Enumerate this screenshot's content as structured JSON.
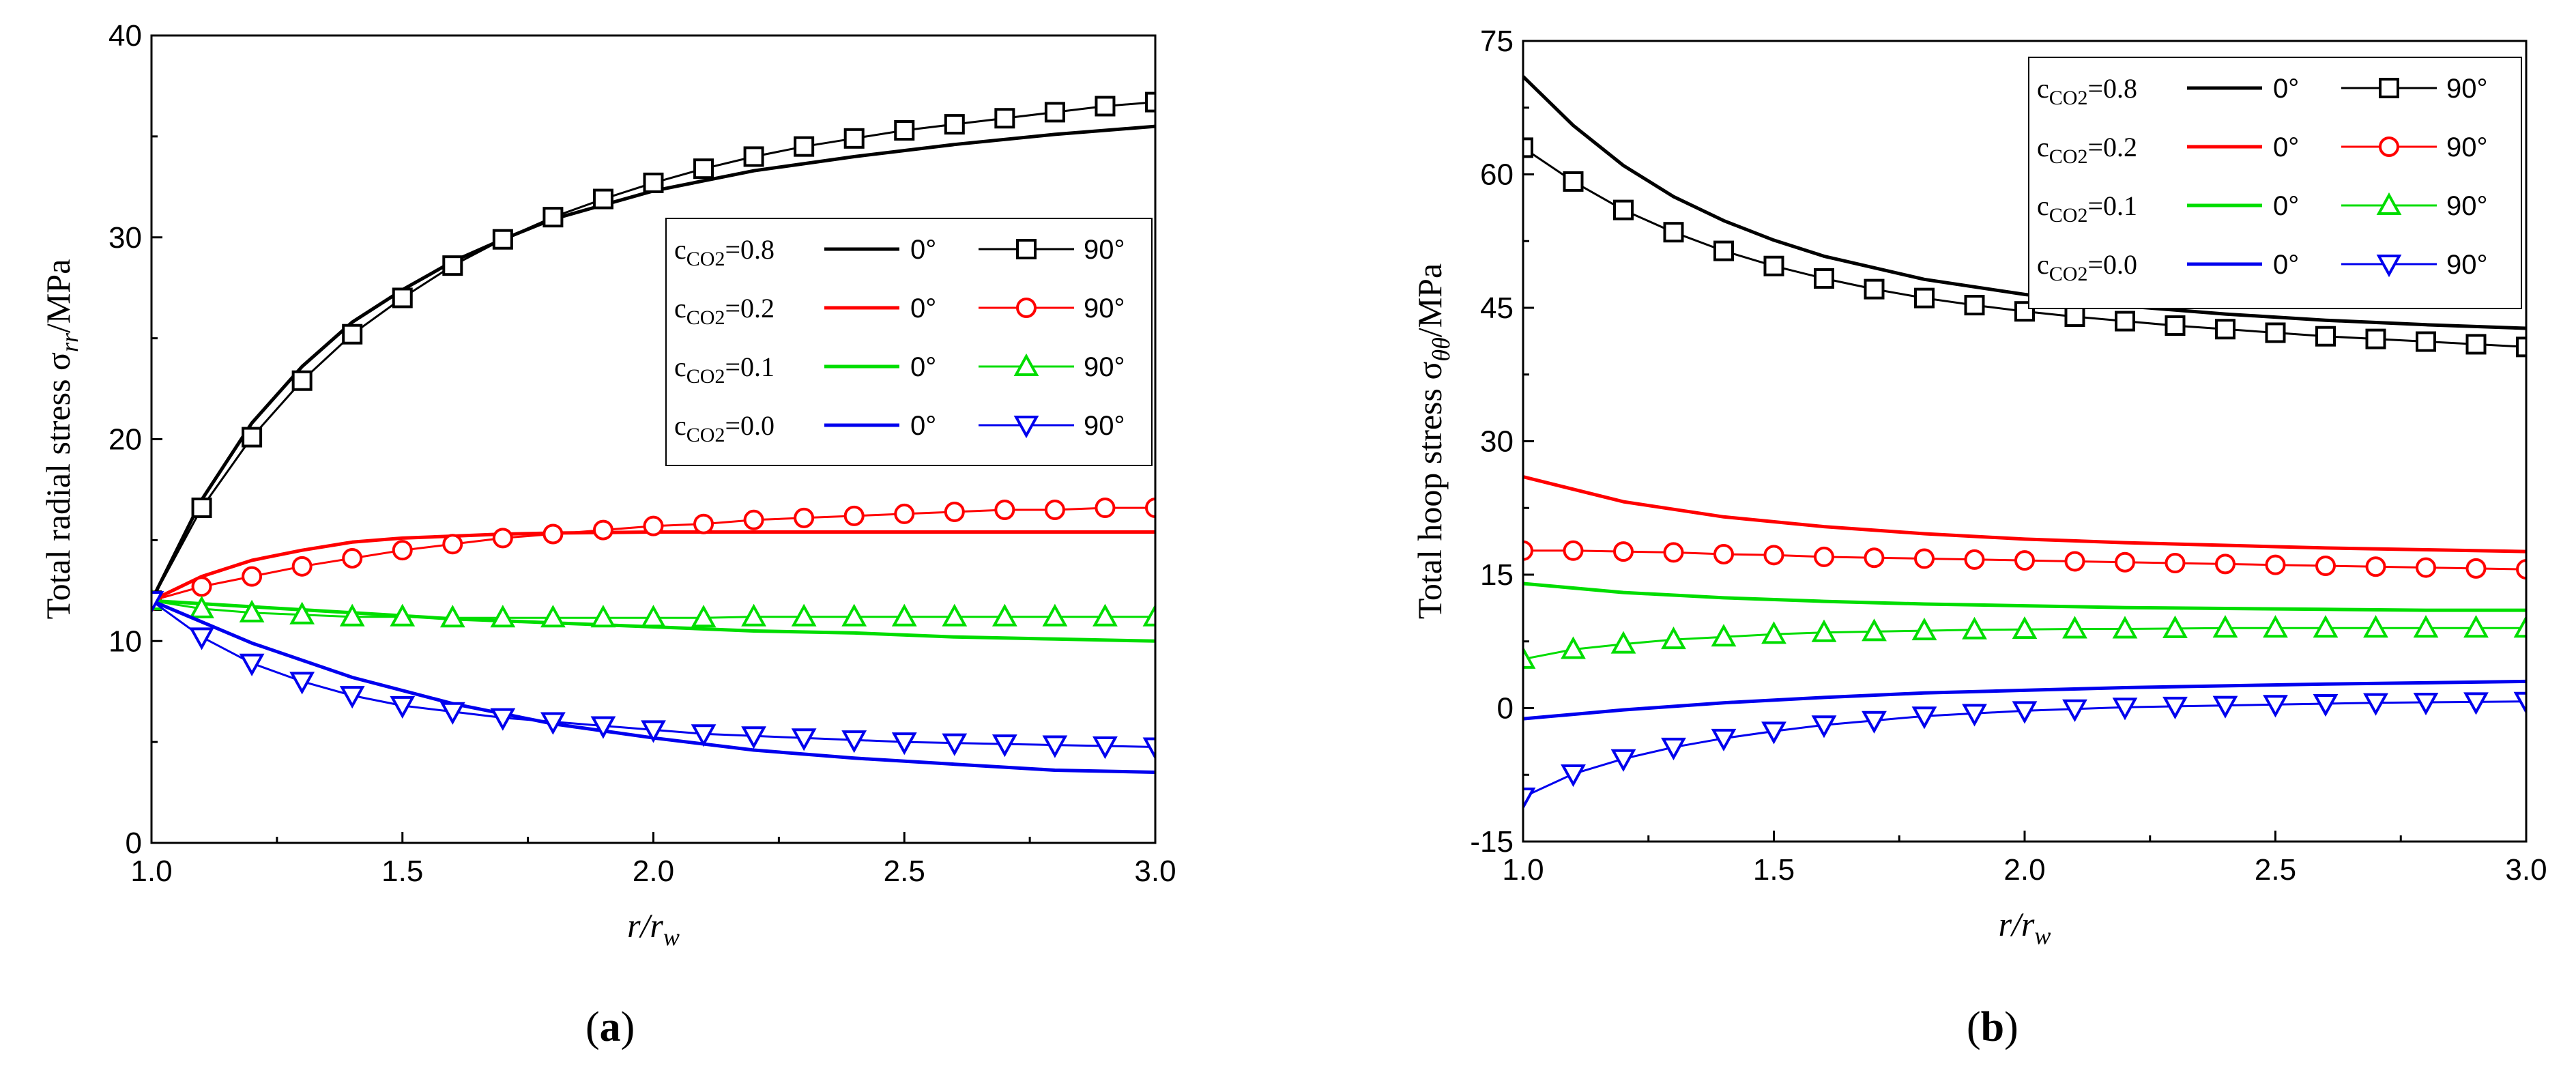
{
  "chart_data": [
    {
      "type": "line",
      "panel_label": "a",
      "xlabel": "r/r_w",
      "ylabel": "Total radial stress σ_rr/MPa",
      "xlim": [
        1.0,
        3.0
      ],
      "ylim": [
        0,
        40
      ],
      "xticks": [
        "1.0",
        "1.5",
        "2.0",
        "2.5",
        "3.0"
      ],
      "yticks": [
        "0",
        "10",
        "20",
        "30",
        "40"
      ],
      "legend_placement": "upper-right",
      "grid": false,
      "legend": [
        {
          "label": "c_CO2=0.8",
          "deg0": "0°",
          "deg90": "90°"
        },
        {
          "label": "c_CO2=0.2",
          "deg0": "0°",
          "deg90": "90°"
        },
        {
          "label": "c_CO2=0.1",
          "deg0": "0°",
          "deg90": "90°"
        },
        {
          "label": "c_CO2=0.0",
          "deg0": "0°",
          "deg90": "90°"
        }
      ],
      "series": [
        {
          "name": "c_CO2=0.8 0°",
          "color": "#000000",
          "marker": "none",
          "x": [
            1.0,
            1.1,
            1.2,
            1.3,
            1.4,
            1.5,
            1.6,
            1.7,
            1.8,
            1.9,
            2.0,
            2.2,
            2.4,
            2.6,
            2.8,
            3.0
          ],
          "y": [
            12.0,
            17.0,
            20.8,
            23.6,
            25.8,
            27.4,
            28.8,
            29.9,
            30.9,
            31.6,
            32.3,
            33.3,
            34.0,
            34.6,
            35.1,
            35.5
          ]
        },
        {
          "name": "c_CO2=0.8 90°",
          "color": "#000000",
          "marker": "square",
          "x": [
            1.0,
            1.1,
            1.2,
            1.3,
            1.4,
            1.5,
            1.6,
            1.7,
            1.8,
            1.9,
            2.0,
            2.1,
            2.2,
            2.3,
            2.4,
            2.5,
            2.6,
            2.7,
            2.8,
            2.9,
            3.0
          ],
          "y": [
            12.0,
            16.6,
            20.1,
            22.9,
            25.2,
            27.0,
            28.6,
            29.9,
            31.0,
            31.9,
            32.7,
            33.4,
            34.0,
            34.5,
            34.9,
            35.3,
            35.6,
            35.9,
            36.2,
            36.5,
            36.7
          ]
        },
        {
          "name": "c_CO2=0.2 0°",
          "color": "#ff0000",
          "marker": "none",
          "x": [
            1.0,
            1.1,
            1.2,
            1.3,
            1.4,
            1.5,
            1.6,
            1.7,
            1.8,
            2.0,
            2.2,
            2.4,
            2.6,
            2.8,
            3.0
          ],
          "y": [
            12.0,
            13.2,
            14.0,
            14.5,
            14.9,
            15.1,
            15.2,
            15.3,
            15.35,
            15.4,
            15.4,
            15.4,
            15.4,
            15.4,
            15.4
          ]
        },
        {
          "name": "c_CO2=0.2 90°",
          "color": "#ff0000",
          "marker": "circle",
          "x": [
            1.0,
            1.1,
            1.2,
            1.3,
            1.4,
            1.5,
            1.6,
            1.7,
            1.8,
            1.9,
            2.0,
            2.1,
            2.2,
            2.3,
            2.4,
            2.5,
            2.6,
            2.7,
            2.8,
            2.9,
            3.0
          ],
          "y": [
            12.0,
            12.7,
            13.2,
            13.7,
            14.1,
            14.5,
            14.8,
            15.1,
            15.3,
            15.5,
            15.7,
            15.8,
            16.0,
            16.1,
            16.2,
            16.3,
            16.4,
            16.5,
            16.5,
            16.6,
            16.6
          ]
        },
        {
          "name": "c_CO2=0.1 0°",
          "color": "#00dd00",
          "marker": "none",
          "x": [
            1.0,
            1.2,
            1.4,
            1.6,
            1.8,
            2.0,
            2.2,
            2.4,
            2.6,
            2.8,
            3.0
          ],
          "y": [
            12.0,
            11.7,
            11.4,
            11.1,
            10.9,
            10.7,
            10.5,
            10.4,
            10.2,
            10.1,
            10.0
          ]
        },
        {
          "name": "c_CO2=0.1 90°",
          "color": "#00dd00",
          "marker": "triangle-up",
          "x": [
            1.0,
            1.1,
            1.2,
            1.3,
            1.4,
            1.5,
            1.6,
            1.7,
            1.8,
            1.9,
            2.0,
            2.1,
            2.2,
            2.3,
            2.4,
            2.5,
            2.6,
            2.7,
            2.8,
            2.9,
            3.0
          ],
          "y": [
            12.0,
            11.6,
            11.4,
            11.3,
            11.2,
            11.2,
            11.15,
            11.15,
            11.15,
            11.15,
            11.15,
            11.15,
            11.2,
            11.2,
            11.2,
            11.2,
            11.2,
            11.2,
            11.2,
            11.2,
            11.2
          ]
        },
        {
          "name": "c_CO2=0.0 0°",
          "color": "#0000ee",
          "marker": "none",
          "x": [
            1.0,
            1.2,
            1.4,
            1.6,
            1.8,
            2.0,
            2.2,
            2.4,
            2.6,
            2.8,
            3.0
          ],
          "y": [
            12.0,
            9.9,
            8.2,
            6.9,
            5.9,
            5.2,
            4.6,
            4.2,
            3.9,
            3.6,
            3.5
          ]
        },
        {
          "name": "c_CO2=0.0 90°",
          "color": "#0000ee",
          "marker": "triangle-down",
          "x": [
            1.0,
            1.1,
            1.2,
            1.3,
            1.4,
            1.5,
            1.6,
            1.7,
            1.8,
            1.9,
            2.0,
            2.1,
            2.2,
            2.3,
            2.4,
            2.5,
            2.6,
            2.7,
            2.8,
            2.9,
            3.0
          ],
          "y": [
            12.0,
            10.2,
            8.9,
            8.0,
            7.3,
            6.8,
            6.5,
            6.2,
            6.0,
            5.8,
            5.6,
            5.4,
            5.3,
            5.2,
            5.1,
            5.0,
            4.95,
            4.9,
            4.85,
            4.8,
            4.75
          ]
        }
      ]
    },
    {
      "type": "line",
      "panel_label": "b",
      "xlabel": "r/r_w",
      "ylabel": "Total hoop stress σ_θθ/MPa",
      "xlim": [
        1.0,
        3.0
      ],
      "ylim": [
        -15,
        75
      ],
      "xticks": [
        "1.0",
        "1.5",
        "2.0",
        "2.5",
        "3.0"
      ],
      "yticks": [
        "-15",
        "0",
        "15",
        "30",
        "45",
        "60",
        "75"
      ],
      "legend_placement": "upper-right",
      "grid": false,
      "legend": [
        {
          "label": "c_CO2=0.8",
          "deg0": "0°",
          "deg90": "90°"
        },
        {
          "label": "c_CO2=0.2",
          "deg0": "0°",
          "deg90": "90°"
        },
        {
          "label": "c_CO2=0.1",
          "deg0": "0°",
          "deg90": "90°"
        },
        {
          "label": "c_CO2=0.0",
          "deg0": "0°",
          "deg90": "90°"
        }
      ],
      "series": [
        {
          "name": "c_CO2=0.8 0°",
          "color": "#000000",
          "marker": "none",
          "x": [
            1.0,
            1.1,
            1.2,
            1.3,
            1.4,
            1.5,
            1.6,
            1.8,
            2.0,
            2.2,
            2.4,
            2.6,
            2.8,
            3.0
          ],
          "y": [
            71.0,
            65.5,
            61.0,
            57.5,
            54.8,
            52.6,
            50.8,
            48.2,
            46.5,
            45.2,
            44.3,
            43.6,
            43.1,
            42.7
          ]
        },
        {
          "name": "c_CO2=0.8 90°",
          "color": "#000000",
          "marker": "square",
          "x": [
            1.0,
            1.1,
            1.2,
            1.3,
            1.4,
            1.5,
            1.6,
            1.7,
            1.8,
            1.9,
            2.0,
            2.1,
            2.2,
            2.3,
            2.4,
            2.5,
            2.6,
            2.7,
            2.8,
            2.9,
            3.0
          ],
          "y": [
            63.0,
            59.2,
            56.0,
            53.5,
            51.4,
            49.7,
            48.3,
            47.1,
            46.1,
            45.3,
            44.6,
            44.0,
            43.5,
            43.0,
            42.6,
            42.2,
            41.8,
            41.5,
            41.2,
            40.9,
            40.6
          ]
        },
        {
          "name": "c_CO2=0.2 0°",
          "color": "#ff0000",
          "marker": "none",
          "x": [
            1.0,
            1.2,
            1.4,
            1.6,
            1.8,
            2.0,
            2.2,
            2.4,
            2.6,
            2.8,
            3.0
          ],
          "y": [
            26.0,
            23.2,
            21.5,
            20.4,
            19.6,
            19.0,
            18.6,
            18.3,
            18.0,
            17.8,
            17.6
          ]
        },
        {
          "name": "c_CO2=0.2 90°",
          "color": "#ff0000",
          "marker": "circle",
          "x": [
            1.0,
            1.1,
            1.2,
            1.3,
            1.4,
            1.5,
            1.6,
            1.7,
            1.8,
            1.9,
            2.0,
            2.1,
            2.2,
            2.3,
            2.4,
            2.5,
            2.6,
            2.7,
            2.8,
            2.9,
            3.0
          ],
          "y": [
            17.7,
            17.7,
            17.6,
            17.5,
            17.3,
            17.2,
            17.0,
            16.9,
            16.8,
            16.7,
            16.6,
            16.5,
            16.4,
            16.3,
            16.2,
            16.1,
            16.0,
            15.9,
            15.8,
            15.7,
            15.6
          ]
        },
        {
          "name": "c_CO2=0.1 0°",
          "color": "#00dd00",
          "marker": "none",
          "x": [
            1.0,
            1.2,
            1.4,
            1.6,
            1.8,
            2.0,
            2.2,
            2.4,
            2.6,
            2.8,
            3.0
          ],
          "y": [
            14.0,
            13.0,
            12.4,
            12.0,
            11.7,
            11.5,
            11.3,
            11.2,
            11.1,
            11.0,
            11.0
          ]
        },
        {
          "name": "c_CO2=0.1 90°",
          "color": "#00dd00",
          "marker": "triangle-up",
          "x": [
            1.0,
            1.1,
            1.2,
            1.3,
            1.4,
            1.5,
            1.6,
            1.7,
            1.8,
            1.9,
            2.0,
            2.1,
            2.2,
            2.3,
            2.4,
            2.5,
            2.6,
            2.7,
            2.8,
            2.9,
            3.0
          ],
          "y": [
            5.5,
            6.6,
            7.2,
            7.7,
            8.0,
            8.3,
            8.5,
            8.6,
            8.7,
            8.8,
            8.85,
            8.9,
            8.9,
            8.95,
            9.0,
            9.0,
            9.0,
            9.0,
            9.0,
            9.0,
            9.0
          ]
        },
        {
          "name": "c_CO2=0.0 0°",
          "color": "#0000ee",
          "marker": "none",
          "x": [
            1.0,
            1.2,
            1.4,
            1.6,
            1.8,
            2.0,
            2.2,
            2.4,
            2.6,
            2.8,
            3.0
          ],
          "y": [
            -1.2,
            -0.2,
            0.6,
            1.2,
            1.7,
            2.0,
            2.3,
            2.5,
            2.7,
            2.85,
            3.0
          ]
        },
        {
          "name": "c_CO2=0.0 90°",
          "color": "#0000ee",
          "marker": "triangle-down",
          "x": [
            1.0,
            1.1,
            1.2,
            1.3,
            1.4,
            1.5,
            1.6,
            1.7,
            1.8,
            1.9,
            2.0,
            2.1,
            2.2,
            2.3,
            2.4,
            2.5,
            2.6,
            2.7,
            2.8,
            2.9,
            3.0
          ],
          "y": [
            -10.0,
            -7.4,
            -5.7,
            -4.4,
            -3.4,
            -2.6,
            -1.9,
            -1.4,
            -0.9,
            -0.6,
            -0.3,
            -0.1,
            0.1,
            0.2,
            0.3,
            0.4,
            0.5,
            0.6,
            0.65,
            0.7,
            0.75
          ]
        }
      ]
    }
  ]
}
